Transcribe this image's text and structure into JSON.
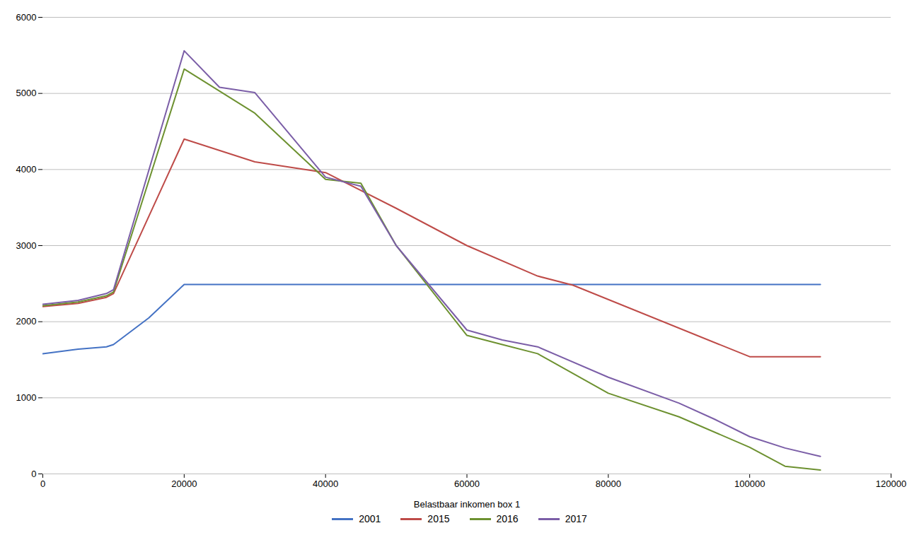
{
  "chart_data": {
    "type": "line",
    "xlabel": "Belastbaar inkomen box 1",
    "xlim": [
      0,
      120000
    ],
    "ylim": [
      0,
      6000
    ],
    "xticks": [
      0,
      20000,
      40000,
      60000,
      80000,
      100000,
      120000
    ],
    "yticks": [
      0,
      1000,
      2000,
      3000,
      4000,
      5000,
      6000
    ],
    "grid": "y",
    "legend": "bottom",
    "series": [
      {
        "name": "2001",
        "color": "#4472C4",
        "x": [
          0,
          5000,
          9000,
          10000,
          15000,
          20000,
          110000
        ],
        "values": [
          1580,
          1640,
          1670,
          1700,
          2050,
          2490,
          2490
        ]
      },
      {
        "name": "2015",
        "color": "#BE4B48",
        "x": [
          0,
          5000,
          9000,
          10000,
          20000,
          30000,
          40000,
          50000,
          60000,
          70000,
          75000,
          100000,
          110000
        ],
        "values": [
          2200,
          2240,
          2320,
          2370,
          4400,
          4100,
          3960,
          3490,
          3000,
          2600,
          2480,
          1540,
          1540
        ]
      },
      {
        "name": "2016",
        "color": "#6D9130",
        "x": [
          0,
          5000,
          9000,
          10000,
          20000,
          30000,
          40000,
          45000,
          50000,
          60000,
          65000,
          70000,
          80000,
          90000,
          100000,
          105000,
          110000
        ],
        "values": [
          2210,
          2260,
          2340,
          2390,
          5320,
          4740,
          3870,
          3820,
          3000,
          1820,
          1700,
          1580,
          1060,
          750,
          350,
          100,
          50
        ]
      },
      {
        "name": "2017",
        "color": "#7B5EA7",
        "x": [
          0,
          5000,
          9000,
          10000,
          20000,
          25000,
          30000,
          40000,
          45000,
          50000,
          60000,
          65000,
          70000,
          80000,
          90000,
          95000,
          100000,
          105000,
          110000
        ],
        "values": [
          2230,
          2280,
          2370,
          2420,
          5560,
          5080,
          5010,
          3900,
          3780,
          3000,
          1890,
          1760,
          1670,
          1270,
          930,
          720,
          490,
          340,
          230
        ]
      }
    ]
  }
}
